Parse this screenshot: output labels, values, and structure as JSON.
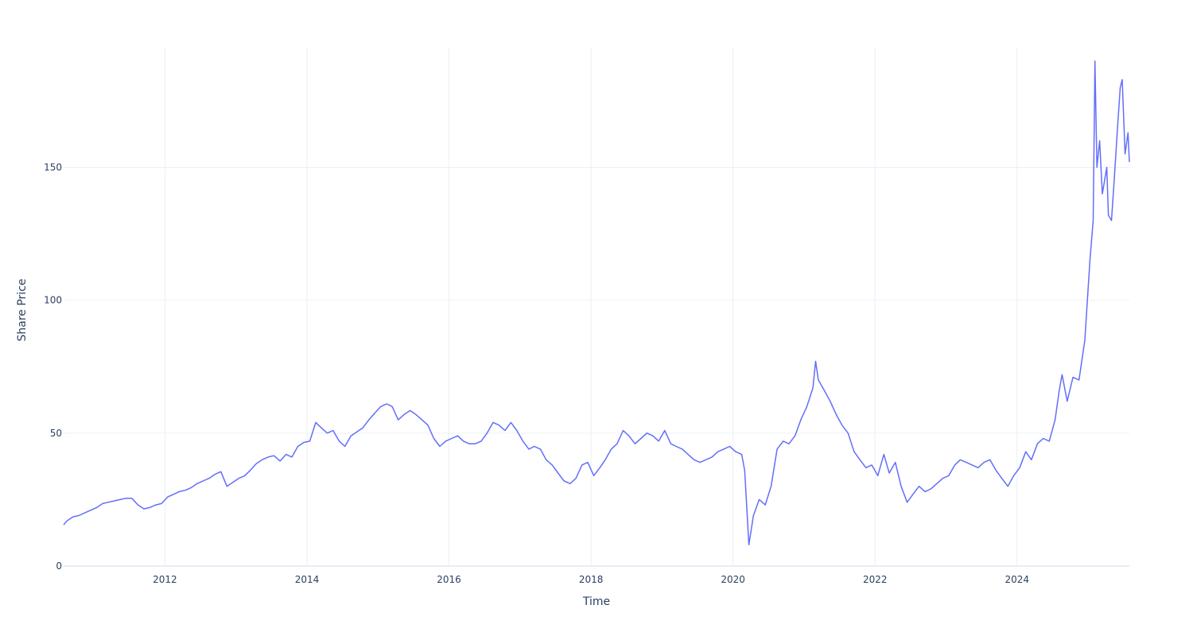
{
  "chart_data": {
    "type": "line",
    "title": "",
    "xlabel": "Time",
    "ylabel": "Share Price",
    "x_type": "date",
    "xlim": [
      "2010-07-29",
      "2025-08-01"
    ],
    "ylim": [
      0,
      195
    ],
    "x_ticks": [
      "2012",
      "2014",
      "2016",
      "2018",
      "2020",
      "2022",
      "2024"
    ],
    "y_ticks": [
      "0",
      "50",
      "100",
      "150"
    ],
    "grid": true,
    "legend": "none",
    "line_color": "#636efa",
    "series": [
      {
        "x": [
          "2010-07-29",
          "2010-08-15",
          "2010-09-15",
          "2010-10-15",
          "2010-11-15",
          "2010-12-15",
          "2011-01-15",
          "2011-02-15",
          "2011-03-15",
          "2011-04-15",
          "2011-05-15",
          "2011-06-15",
          "2011-07-15",
          "2011-08-15",
          "2011-09-15",
          "2011-10-15",
          "2011-11-15",
          "2011-12-15",
          "2012-01-15",
          "2012-02-15",
          "2012-03-15",
          "2012-04-15",
          "2012-05-15",
          "2012-06-15",
          "2012-07-15",
          "2012-08-15",
          "2012-09-15",
          "2012-10-15",
          "2012-11-15",
          "2012-12-15",
          "2013-01-15",
          "2013-02-15",
          "2013-03-15",
          "2013-04-15",
          "2013-05-15",
          "2013-06-15",
          "2013-07-15",
          "2013-08-15",
          "2013-09-15",
          "2013-10-15",
          "2013-11-15",
          "2013-12-15",
          "2014-01-15",
          "2014-02-15",
          "2014-03-15",
          "2014-04-15",
          "2014-05-15",
          "2014-06-15",
          "2014-07-15",
          "2014-08-15",
          "2014-09-15",
          "2014-10-15",
          "2014-11-15",
          "2014-12-15",
          "2015-01-15",
          "2015-02-15",
          "2015-03-15",
          "2015-04-15",
          "2015-05-15",
          "2015-06-15",
          "2015-07-15",
          "2015-08-15",
          "2015-09-15",
          "2015-10-15",
          "2015-11-15",
          "2015-12-15",
          "2016-01-15",
          "2016-02-15",
          "2016-03-15",
          "2016-04-15",
          "2016-05-15",
          "2016-06-15",
          "2016-07-15",
          "2016-08-15",
          "2016-09-15",
          "2016-10-15",
          "2016-11-15",
          "2016-12-15",
          "2017-01-15",
          "2017-02-15",
          "2017-03-15",
          "2017-04-15",
          "2017-05-15",
          "2017-06-15",
          "2017-07-15",
          "2017-08-15",
          "2017-09-15",
          "2017-10-15",
          "2017-11-15",
          "2017-12-15",
          "2018-01-15",
          "2018-02-15",
          "2018-03-15",
          "2018-04-15",
          "2018-05-15",
          "2018-06-15",
          "2018-07-15",
          "2018-08-15",
          "2018-09-15",
          "2018-10-15",
          "2018-11-15",
          "2018-12-15",
          "2019-01-15",
          "2019-02-15",
          "2019-03-15",
          "2019-04-15",
          "2019-05-15",
          "2019-06-15",
          "2019-07-15",
          "2019-08-15",
          "2019-09-15",
          "2019-10-15",
          "2019-11-15",
          "2019-12-15",
          "2020-01-15",
          "2020-02-15",
          "2020-03-01",
          "2020-03-23",
          "2020-04-15",
          "2020-05-15",
          "2020-06-15",
          "2020-07-15",
          "2020-08-15",
          "2020-09-15",
          "2020-10-15",
          "2020-11-15",
          "2020-12-15",
          "2021-01-15",
          "2021-02-15",
          "2021-03-01",
          "2021-03-15",
          "2021-04-15",
          "2021-05-15",
          "2021-06-15",
          "2021-07-15",
          "2021-08-15",
          "2021-09-15",
          "2021-10-15",
          "2021-11-15",
          "2021-12-15",
          "2022-01-15",
          "2022-02-15",
          "2022-03-15",
          "2022-04-15",
          "2022-05-15",
          "2022-06-15",
          "2022-07-15",
          "2022-08-15",
          "2022-09-15",
          "2022-10-15",
          "2022-11-15",
          "2022-12-15",
          "2023-01-15",
          "2023-02-15",
          "2023-03-15",
          "2023-04-15",
          "2023-05-15",
          "2023-06-15",
          "2023-07-15",
          "2023-08-15",
          "2023-09-15",
          "2023-10-15",
          "2023-11-15",
          "2023-12-15",
          "2024-01-15",
          "2024-02-15",
          "2024-03-15",
          "2024-04-15",
          "2024-05-15",
          "2024-06-15",
          "2024-07-15",
          "2024-08-05",
          "2024-08-20",
          "2024-09-15",
          "2024-10-15",
          "2024-11-15",
          "2024-12-15",
          "2025-01-10",
          "2025-01-27",
          "2025-02-05",
          "2025-02-15",
          "2025-03-01",
          "2025-03-15",
          "2025-04-07",
          "2025-04-15",
          "2025-05-01",
          "2025-05-15",
          "2025-06-01",
          "2025-06-15",
          "2025-06-25",
          "2025-07-10",
          "2025-07-25",
          "2025-08-01"
        ],
        "y": [
          15.5,
          17,
          18.5,
          19,
          20,
          21,
          22,
          23.5,
          24,
          24.5,
          25,
          25.5,
          25.5,
          23,
          21.5,
          22,
          23,
          23.5,
          26,
          27,
          28,
          28.5,
          29.5,
          31,
          32,
          33,
          34.5,
          35.5,
          30,
          31.5,
          33,
          34,
          36,
          38.5,
          40,
          41,
          41.5,
          39.5,
          42,
          41,
          45,
          46.5,
          47,
          54,
          52,
          50,
          51,
          47,
          45,
          49,
          50.5,
          52,
          55,
          57.5,
          60,
          61,
          60,
          55,
          57,
          58.5,
          57,
          55,
          53,
          48,
          45,
          47,
          48,
          49,
          47,
          46,
          46,
          47,
          50,
          54,
          53,
          51,
          54,
          51,
          47,
          44,
          45,
          44,
          40,
          38,
          35,
          32,
          31,
          33,
          38,
          39,
          34,
          37,
          40,
          44,
          46,
          51,
          49,
          46,
          48,
          50,
          49,
          47,
          51,
          46,
          45,
          44,
          42,
          40,
          39,
          40,
          41,
          43,
          44,
          45,
          43,
          42,
          36,
          8,
          19,
          25,
          23,
          30,
          44,
          47,
          46,
          49,
          55,
          60,
          67,
          77,
          70,
          66,
          62,
          57,
          53,
          50,
          43,
          40,
          37,
          38,
          34,
          42,
          35,
          39,
          30,
          24,
          27,
          30,
          28,
          29,
          31,
          33,
          34,
          38,
          40,
          39,
          38,
          37,
          39,
          40,
          36,
          33,
          30,
          34,
          37,
          43,
          40,
          46,
          48,
          47,
          55,
          66,
          72,
          62,
          71,
          70,
          85,
          115,
          130,
          190,
          150,
          160,
          140,
          150,
          132,
          130,
          145,
          165,
          180,
          183,
          155,
          163,
          152
        ]
      }
    ]
  }
}
